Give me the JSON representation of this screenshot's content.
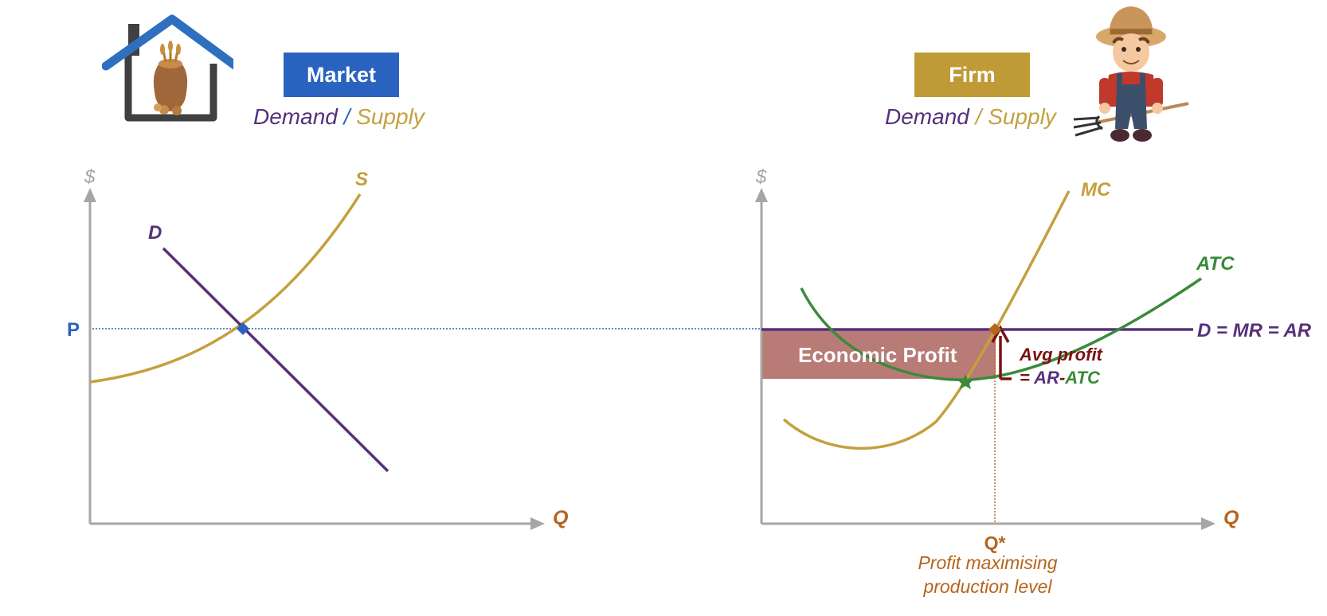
{
  "colors": {
    "market_blue": "#2a63bf",
    "firm_gold": "#bf9a36",
    "demand_purple": "#56307a",
    "supply_gold": "#c4a03d",
    "atc_green": "#3a8a3a",
    "axis_gray": "#a6a6a6",
    "q_orange": "#b5651d",
    "profit_red": "#7a1212",
    "profit_fill": "#b87b76"
  },
  "icons": {
    "market": "house-with-grain-sack-icon",
    "firm": "farmer-with-pitchfork-icon"
  },
  "market": {
    "badge": "Market",
    "subtitle_demand": "Demand",
    "subtitle_sep": "/",
    "subtitle_supply": "Supply",
    "axis_y": "$",
    "axis_x": "Q",
    "demand_label": "D",
    "supply_label": "S",
    "price_label": "P"
  },
  "firm": {
    "badge": "Firm",
    "subtitle_demand": "Demand",
    "subtitle_sep": "/",
    "subtitle_supply": "Supply",
    "axis_y": "$",
    "axis_x": "Q",
    "mc_label": "MC",
    "atc_label": "ATC",
    "demand_label": "D = MR = AR",
    "profit_label": "Economic Profit",
    "avg_profit_line1": "Avg profit",
    "avg_profit_eq": "= ",
    "avg_profit_ar": "AR",
    "avg_profit_dash": "-",
    "avg_profit_atc": "ATC",
    "qstar_label": "Q*",
    "qstar_caption_line1": "Profit maximising",
    "qstar_caption_line2": "production level"
  }
}
